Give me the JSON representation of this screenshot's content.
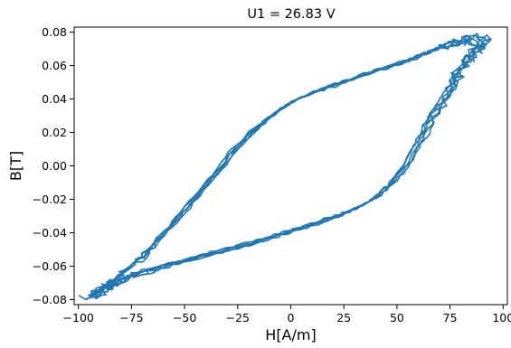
{
  "chart_data": {
    "type": "line",
    "title": "U1 = 26.83 V",
    "xlabel": "H[A/m]",
    "ylabel": "B[T]",
    "xlim": [
      -102,
      102
    ],
    "ylim": [
      -0.083,
      0.083
    ],
    "grid": false,
    "legend": "none",
    "x_ticks": [
      -100,
      -75,
      -50,
      -25,
      0,
      25,
      50,
      75,
      100
    ],
    "x_tick_labels": [
      "−100",
      "−75",
      "−50",
      "−25",
      "0",
      "25",
      "50",
      "75",
      "100"
    ],
    "y_ticks": [
      -0.08,
      -0.06,
      -0.04,
      -0.02,
      0.0,
      0.02,
      0.04,
      0.06,
      0.08
    ],
    "y_tick_labels": [
      "−0.08",
      "−0.06",
      "−0.04",
      "−0.02",
      "0.00",
      "0.02",
      "0.04",
      "0.06",
      "0.08"
    ],
    "series": [
      {
        "color": "#1f77b4",
        "loops": 5,
        "upper_branch": [
          [
            -94,
            -0.078
          ],
          [
            -85,
            -0.07
          ],
          [
            -75,
            -0.06
          ],
          [
            -65,
            -0.048
          ],
          [
            -55,
            -0.034
          ],
          [
            -45,
            -0.019
          ],
          [
            -35,
            -0.004
          ],
          [
            -25,
            0.012
          ],
          [
            -15,
            0.024
          ],
          [
            -5,
            0.034
          ],
          [
            5,
            0.041
          ],
          [
            15,
            0.046
          ],
          [
            25,
            0.05
          ],
          [
            35,
            0.055
          ],
          [
            45,
            0.059
          ],
          [
            55,
            0.063
          ],
          [
            65,
            0.068
          ],
          [
            75,
            0.073
          ],
          [
            85,
            0.076
          ],
          [
            91,
            0.073
          ]
        ],
        "lower_branch": [
          [
            91,
            0.073
          ],
          [
            85,
            0.066
          ],
          [
            80,
            0.058
          ],
          [
            75,
            0.046
          ],
          [
            68,
            0.033
          ],
          [
            62,
            0.018
          ],
          [
            55,
            0.002
          ],
          [
            48,
            -0.01
          ],
          [
            40,
            -0.019
          ],
          [
            30,
            -0.026
          ],
          [
            20,
            -0.031
          ],
          [
            10,
            -0.035
          ],
          [
            0,
            -0.039
          ],
          [
            -10,
            -0.043
          ],
          [
            -20,
            -0.047
          ],
          [
            -30,
            -0.05
          ],
          [
            -45,
            -0.055
          ],
          [
            -60,
            -0.06
          ],
          [
            -75,
            -0.066
          ],
          [
            -85,
            -0.072
          ],
          [
            -94,
            -0.078
          ]
        ]
      }
    ]
  }
}
